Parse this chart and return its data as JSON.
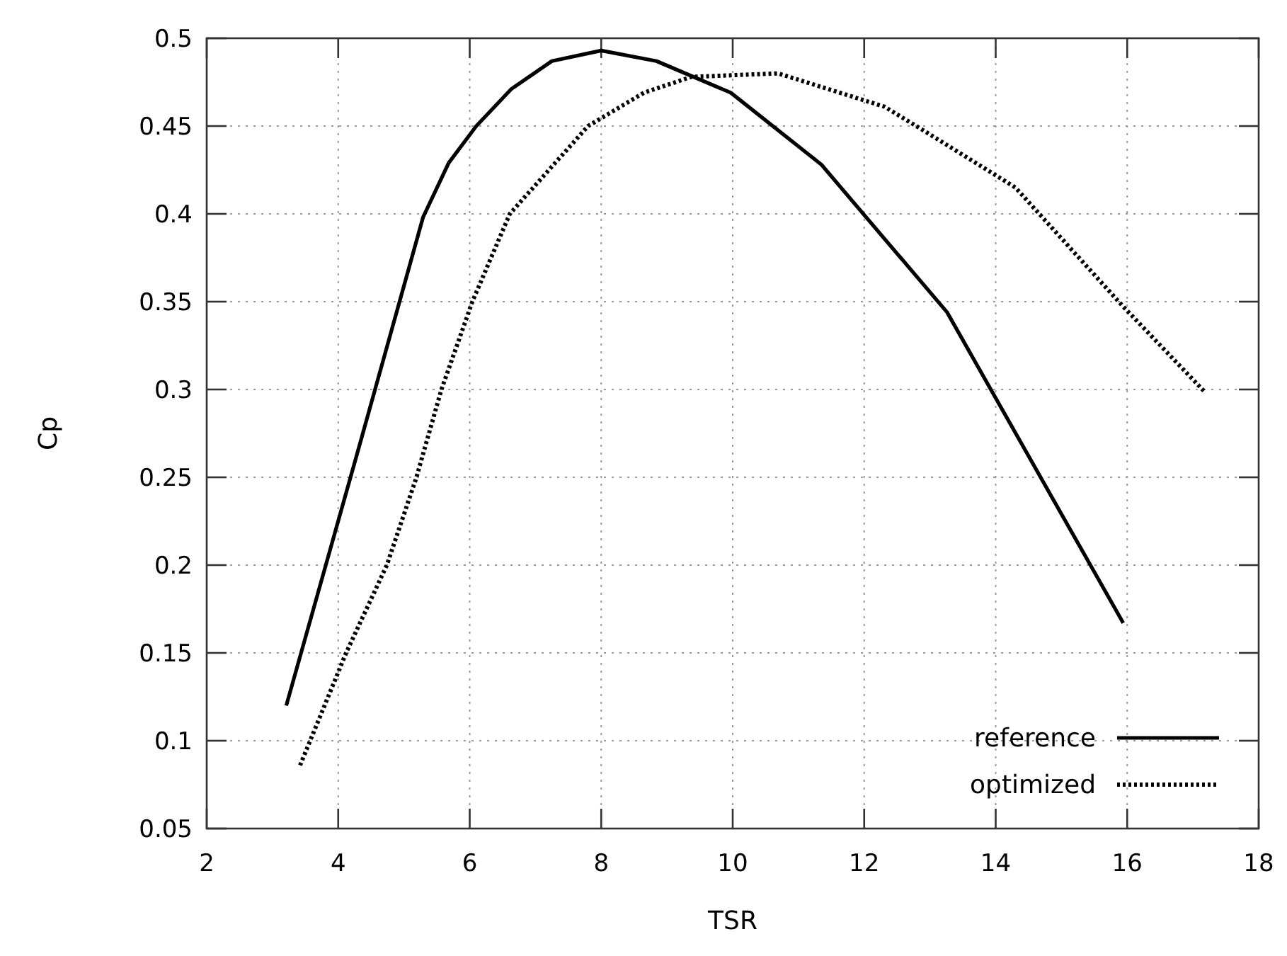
{
  "chart_data": {
    "type": "line",
    "xlabel": "TSR",
    "ylabel": "Cp",
    "xlim": [
      2,
      18
    ],
    "xticks": [
      2,
      4,
      6,
      8,
      10,
      12,
      14,
      16,
      18
    ],
    "ylim": [
      0.05,
      0.5
    ],
    "yticks": [
      0.05,
      0.1,
      0.15,
      0.2,
      0.25,
      0.3,
      0.35,
      0.4,
      0.45,
      0.5
    ],
    "grid": true,
    "legend": "bottom right",
    "series": [
      {
        "name": "reference",
        "color": "#000000",
        "line_style": "solid",
        "x": [
          3.21,
          4.3,
          5.29,
          5.68,
          6.1,
          6.63,
          7.25,
          8.0,
          8.84,
          9.97,
          11.35,
          13.26,
          15.94
        ],
        "values": [
          0.12,
          0.265,
          0.398,
          0.429,
          0.45,
          0.471,
          0.487,
          0.493,
          0.487,
          0.469,
          0.428,
          0.344,
          0.167
        ]
      },
      {
        "name": "optimized",
        "color": "#000000",
        "line_style": "dotted",
        "x": [
          3.42,
          4.12,
          4.74,
          5.19,
          5.57,
          6.04,
          6.61,
          7.8,
          8.65,
          9.37,
          10.69,
          12.31,
          12.88,
          14.3,
          15.92,
          17.17
        ],
        "values": [
          0.086,
          0.15,
          0.2,
          0.25,
          0.3,
          0.35,
          0.4,
          0.45,
          0.469,
          0.478,
          0.48,
          0.461,
          0.448,
          0.415,
          0.348,
          0.299
        ]
      }
    ]
  }
}
